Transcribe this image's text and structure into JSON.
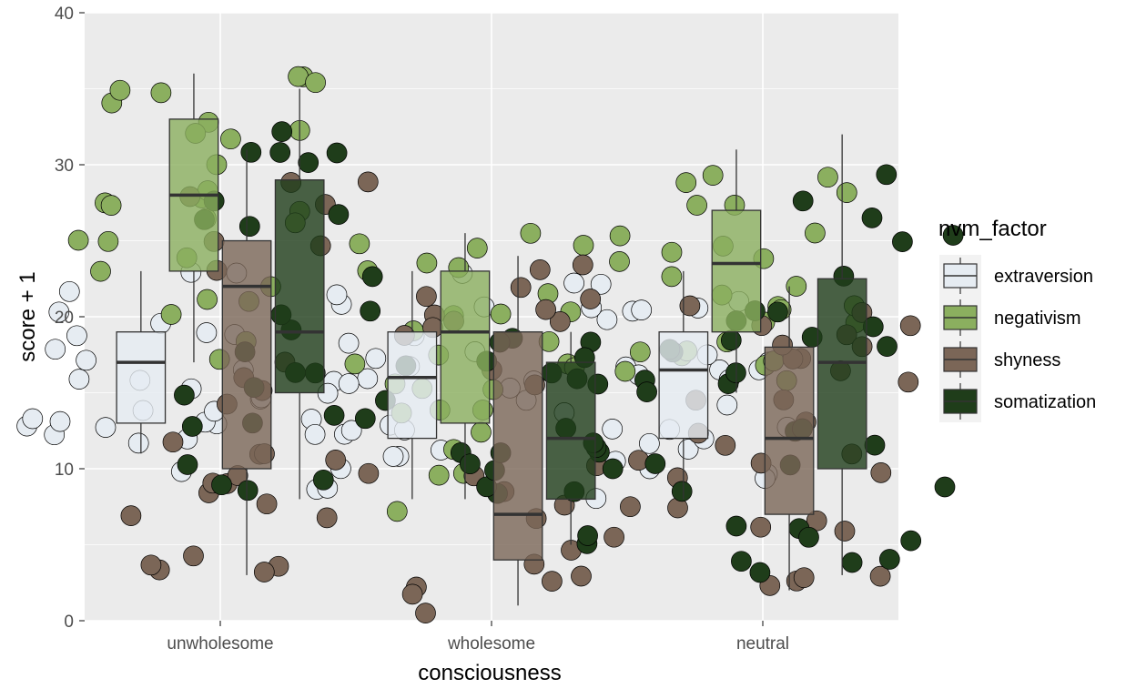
{
  "chart_data": {
    "type": "boxplot",
    "xlabel": "consciousness",
    "ylabel": "score + 1",
    "ylim": [
      0,
      40
    ],
    "yticks": [
      0,
      10,
      20,
      30,
      40
    ],
    "grid": true,
    "legend": {
      "title": "nvm_factor",
      "placement": "right"
    },
    "categories": [
      "unwholesome",
      "wholesome",
      "neutral"
    ],
    "series": [
      {
        "name": "extraversion",
        "color": "#E6ECF2",
        "boxes": [
          {
            "min": 11,
            "q1": 13,
            "median": 17,
            "q3": 19,
            "max": 23
          },
          {
            "min": 8,
            "q1": 12,
            "median": 16,
            "q3": 19,
            "max": 23
          },
          {
            "min": 8,
            "q1": 12,
            "median": 16.5,
            "q3": 19,
            "max": 23
          }
        ]
      },
      {
        "name": "negativism",
        "color": "#8BAF5F",
        "boxes": [
          {
            "min": 17,
            "q1": 23,
            "median": 28,
            "q3": 33,
            "max": 36
          },
          {
            "min": 8,
            "q1": 13,
            "median": 19,
            "q3": 23,
            "max": 25.5
          },
          {
            "min": 15,
            "q1": 19,
            "median": 23.5,
            "q3": 27,
            "max": 31
          }
        ]
      },
      {
        "name": "shyness",
        "color": "#7B6657",
        "boxes": [
          {
            "min": 3,
            "q1": 10,
            "median": 22,
            "q3": 25,
            "max": 31
          },
          {
            "min": 1,
            "q1": 4,
            "median": 7,
            "q3": 19,
            "max": 24
          },
          {
            "min": 2,
            "q1": 7,
            "median": 12,
            "q3": 18,
            "max": 22
          }
        ]
      },
      {
        "name": "somatization",
        "color": "#1F3D1A",
        "boxes": [
          {
            "min": 8,
            "q1": 15,
            "median": 19,
            "q3": 29,
            "max": 35
          },
          {
            "min": 5,
            "q1": 8,
            "median": 12,
            "q3": 17,
            "max": 19
          },
          {
            "min": 3,
            "q1": 10,
            "median": 17,
            "q3": 22.5,
            "max": 32
          }
        ]
      }
    ],
    "points_per_box": 28
  },
  "colors": {
    "panel_bg": "#EBEBEB",
    "grid_major": "#FFFFFF",
    "box_outline": "#333333",
    "median_line": "#333333"
  }
}
